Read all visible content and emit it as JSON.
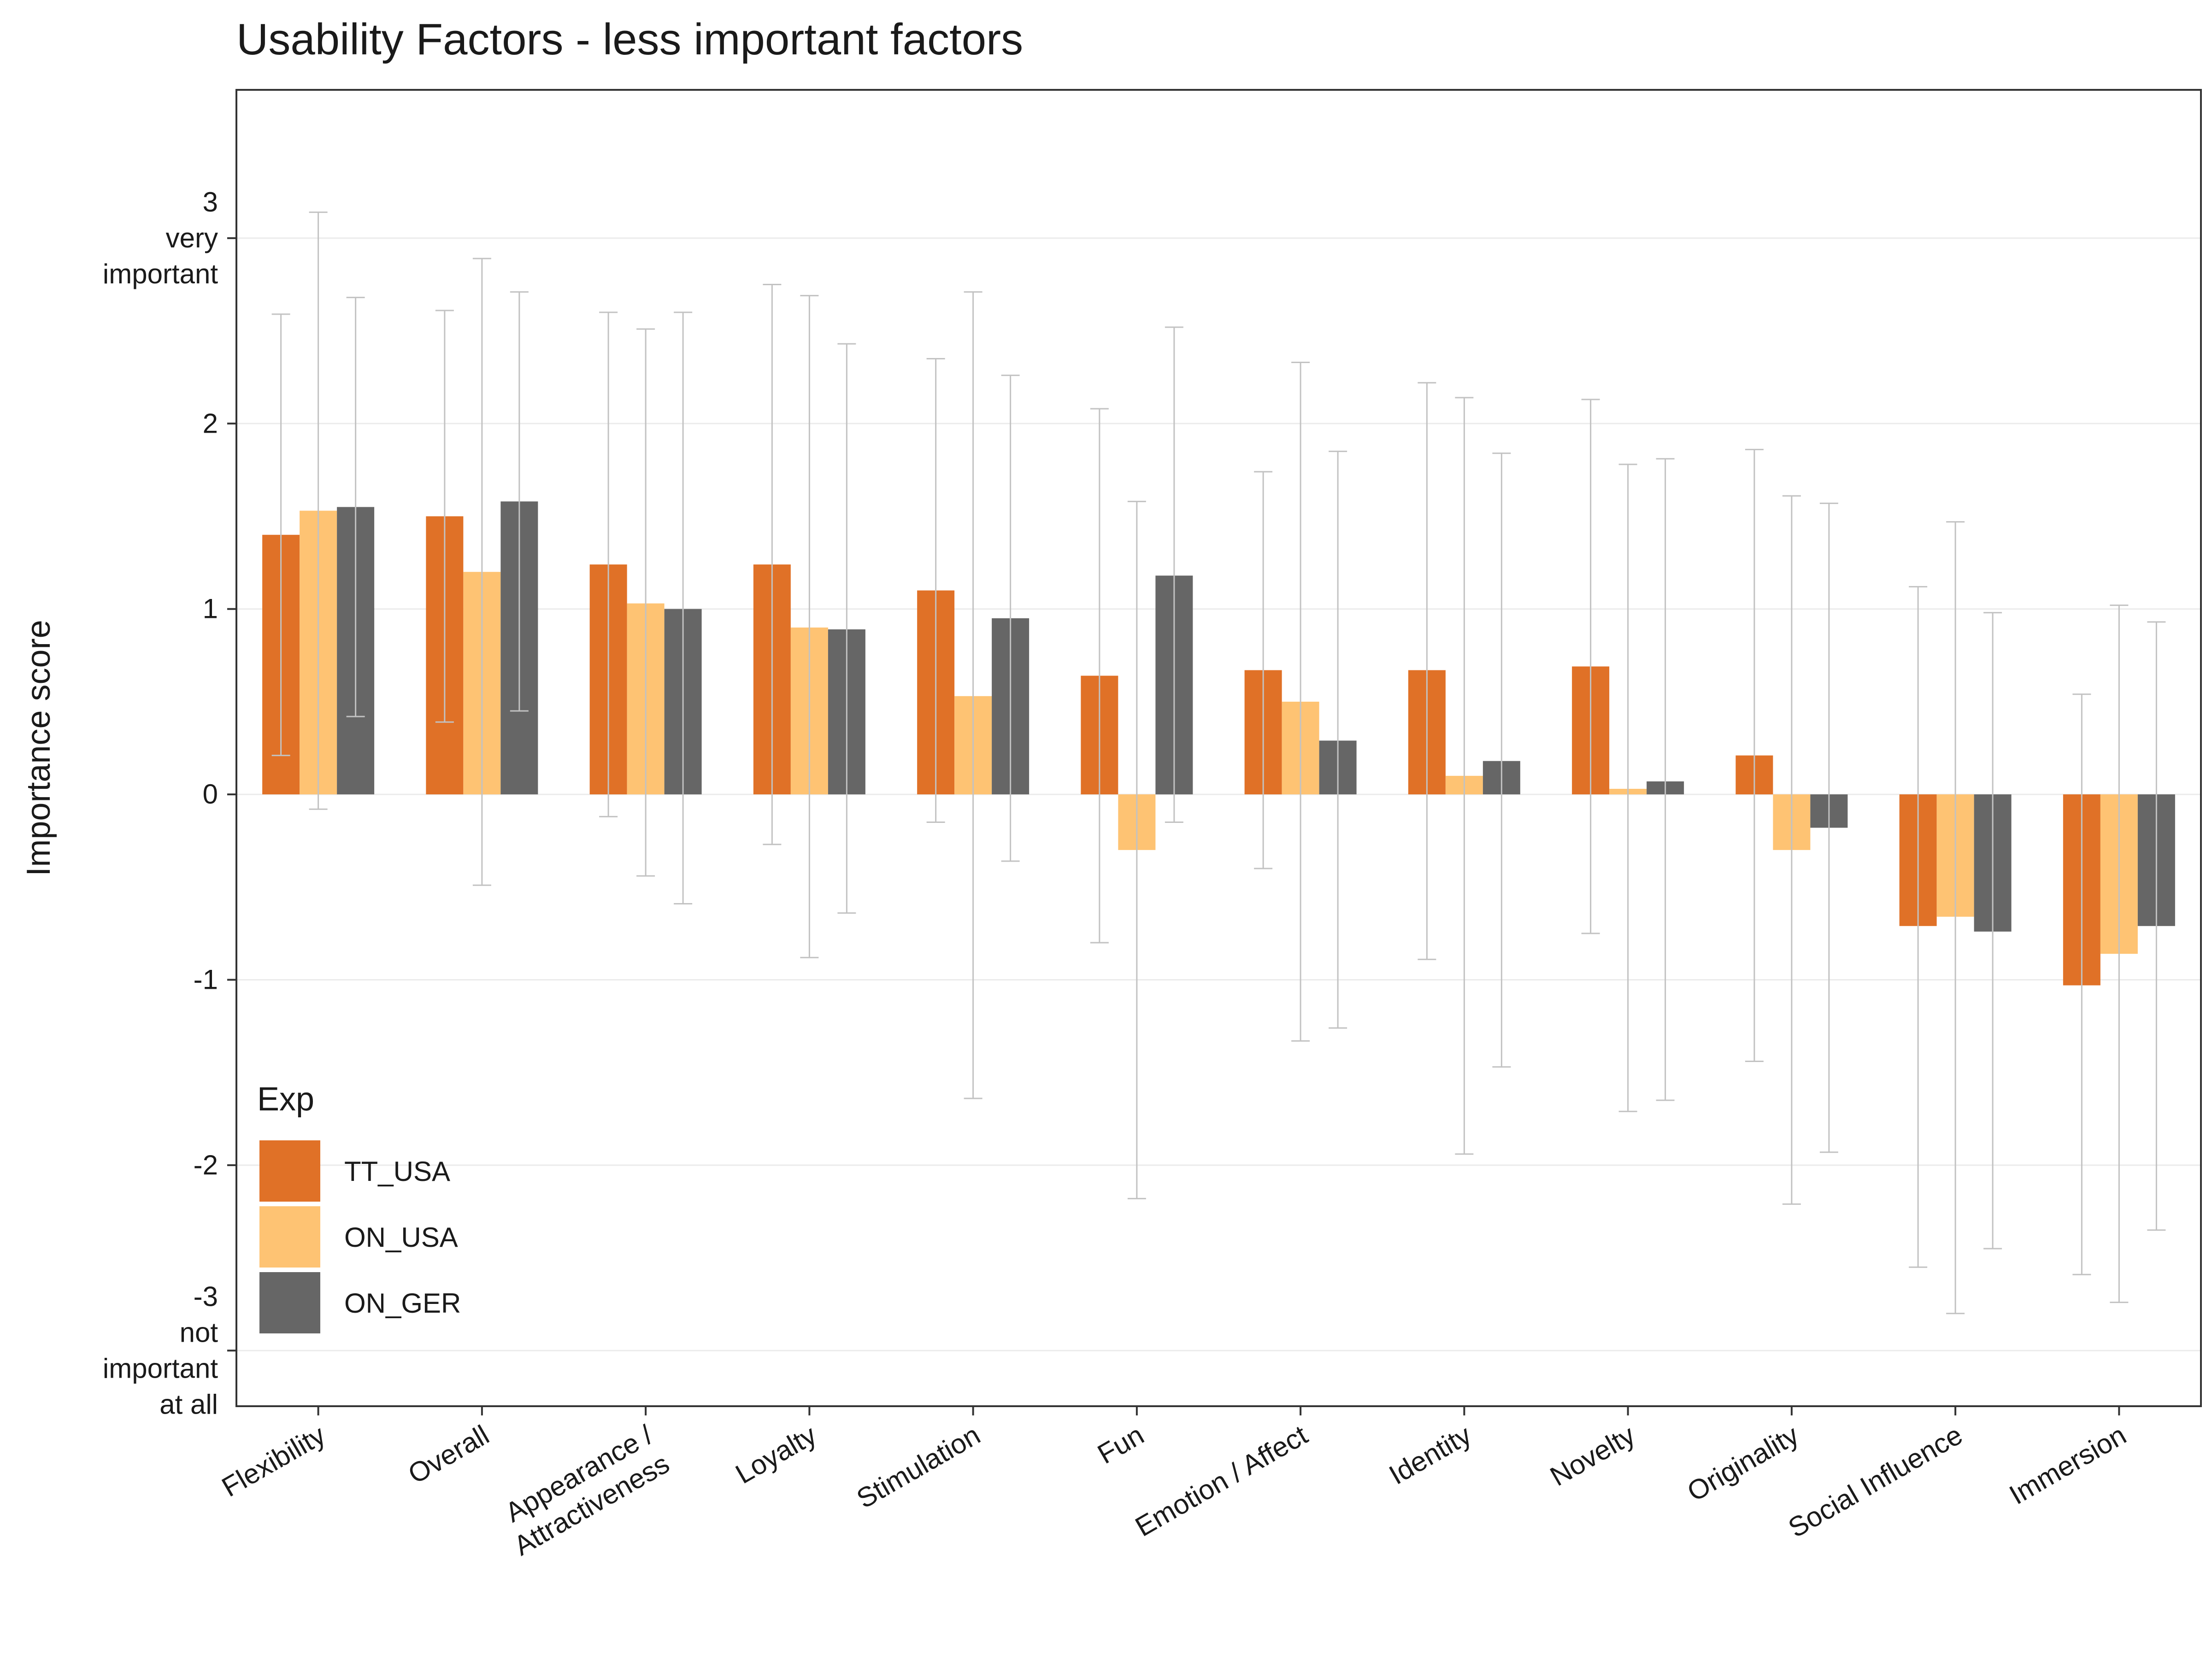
{
  "chart_data": {
    "type": "bar",
    "title": "Usability Factors - less important factors",
    "xlabel": "",
    "ylabel": "Importance score",
    "ylim": [
      -3.3,
      3.8
    ],
    "grid": true,
    "yticks": [
      {
        "value": 3,
        "lines": [
          "3",
          "very",
          "important"
        ]
      },
      {
        "value": 2,
        "lines": [
          "2"
        ]
      },
      {
        "value": 1,
        "lines": [
          "1"
        ]
      },
      {
        "value": 0,
        "lines": [
          "0"
        ]
      },
      {
        "value": -1,
        "lines": [
          "-1"
        ]
      },
      {
        "value": -2,
        "lines": [
          "-2"
        ]
      },
      {
        "value": -3,
        "lines": [
          "-3",
          "not",
          "important",
          "at all"
        ]
      }
    ],
    "categories": [
      [
        "Flexibility"
      ],
      [
        "Overall"
      ],
      [
        "Appearance /",
        "Attractiveness"
      ],
      [
        "Loyalty"
      ],
      [
        "Stimulation"
      ],
      [
        "Fun"
      ],
      [
        "Emotion / Affect"
      ],
      [
        "Identity"
      ],
      [
        "Novelty"
      ],
      [
        "Originality"
      ],
      [
        "Social Influence"
      ],
      [
        "Immersion"
      ]
    ],
    "legend": {
      "title": "Exp",
      "position": "bottom-left"
    },
    "series": [
      {
        "name": "TT_USA",
        "color": "#E07127",
        "values": [
          1.4,
          1.5,
          1.24,
          1.24,
          1.1,
          0.64,
          0.67,
          0.67,
          0.69,
          0.21,
          -0.71,
          -1.03
        ],
        "error_low": [
          0.21,
          0.39,
          -0.12,
          -0.27,
          -0.15,
          -0.8,
          -0.4,
          -0.89,
          -0.75,
          -1.44,
          -2.55,
          -2.59
        ],
        "error_high": [
          2.59,
          2.61,
          2.6,
          2.75,
          2.35,
          2.08,
          1.74,
          2.22,
          2.13,
          1.86,
          1.12,
          0.54
        ]
      },
      {
        "name": "ON_USA",
        "color": "#FEC373",
        "values": [
          1.53,
          1.2,
          1.03,
          0.9,
          0.53,
          -0.3,
          0.5,
          0.1,
          0.03,
          -0.3,
          -0.66,
          -0.86
        ],
        "error_low": [
          -0.08,
          -0.49,
          -0.44,
          -0.88,
          -1.64,
          -2.18,
          -1.33,
          -1.94,
          -1.71,
          -2.21,
          -2.8,
          -2.74
        ],
        "error_high": [
          3.14,
          2.89,
          2.51,
          2.69,
          2.71,
          1.58,
          2.33,
          2.14,
          1.78,
          1.61,
          1.47,
          1.02
        ]
      },
      {
        "name": "ON_GER",
        "color": "#666666",
        "values": [
          1.55,
          1.58,
          1.0,
          0.89,
          0.95,
          1.18,
          0.29,
          0.18,
          0.07,
          -0.18,
          -0.74,
          -0.71
        ],
        "error_low": [
          0.42,
          0.45,
          -0.59,
          -0.64,
          -0.36,
          -0.15,
          -1.26,
          -1.47,
          -1.65,
          -1.93,
          -2.45,
          -2.35
        ],
        "error_high": [
          2.68,
          2.71,
          2.6,
          2.43,
          2.26,
          2.52,
          1.85,
          1.84,
          1.81,
          1.57,
          0.98,
          0.93
        ]
      }
    ]
  }
}
